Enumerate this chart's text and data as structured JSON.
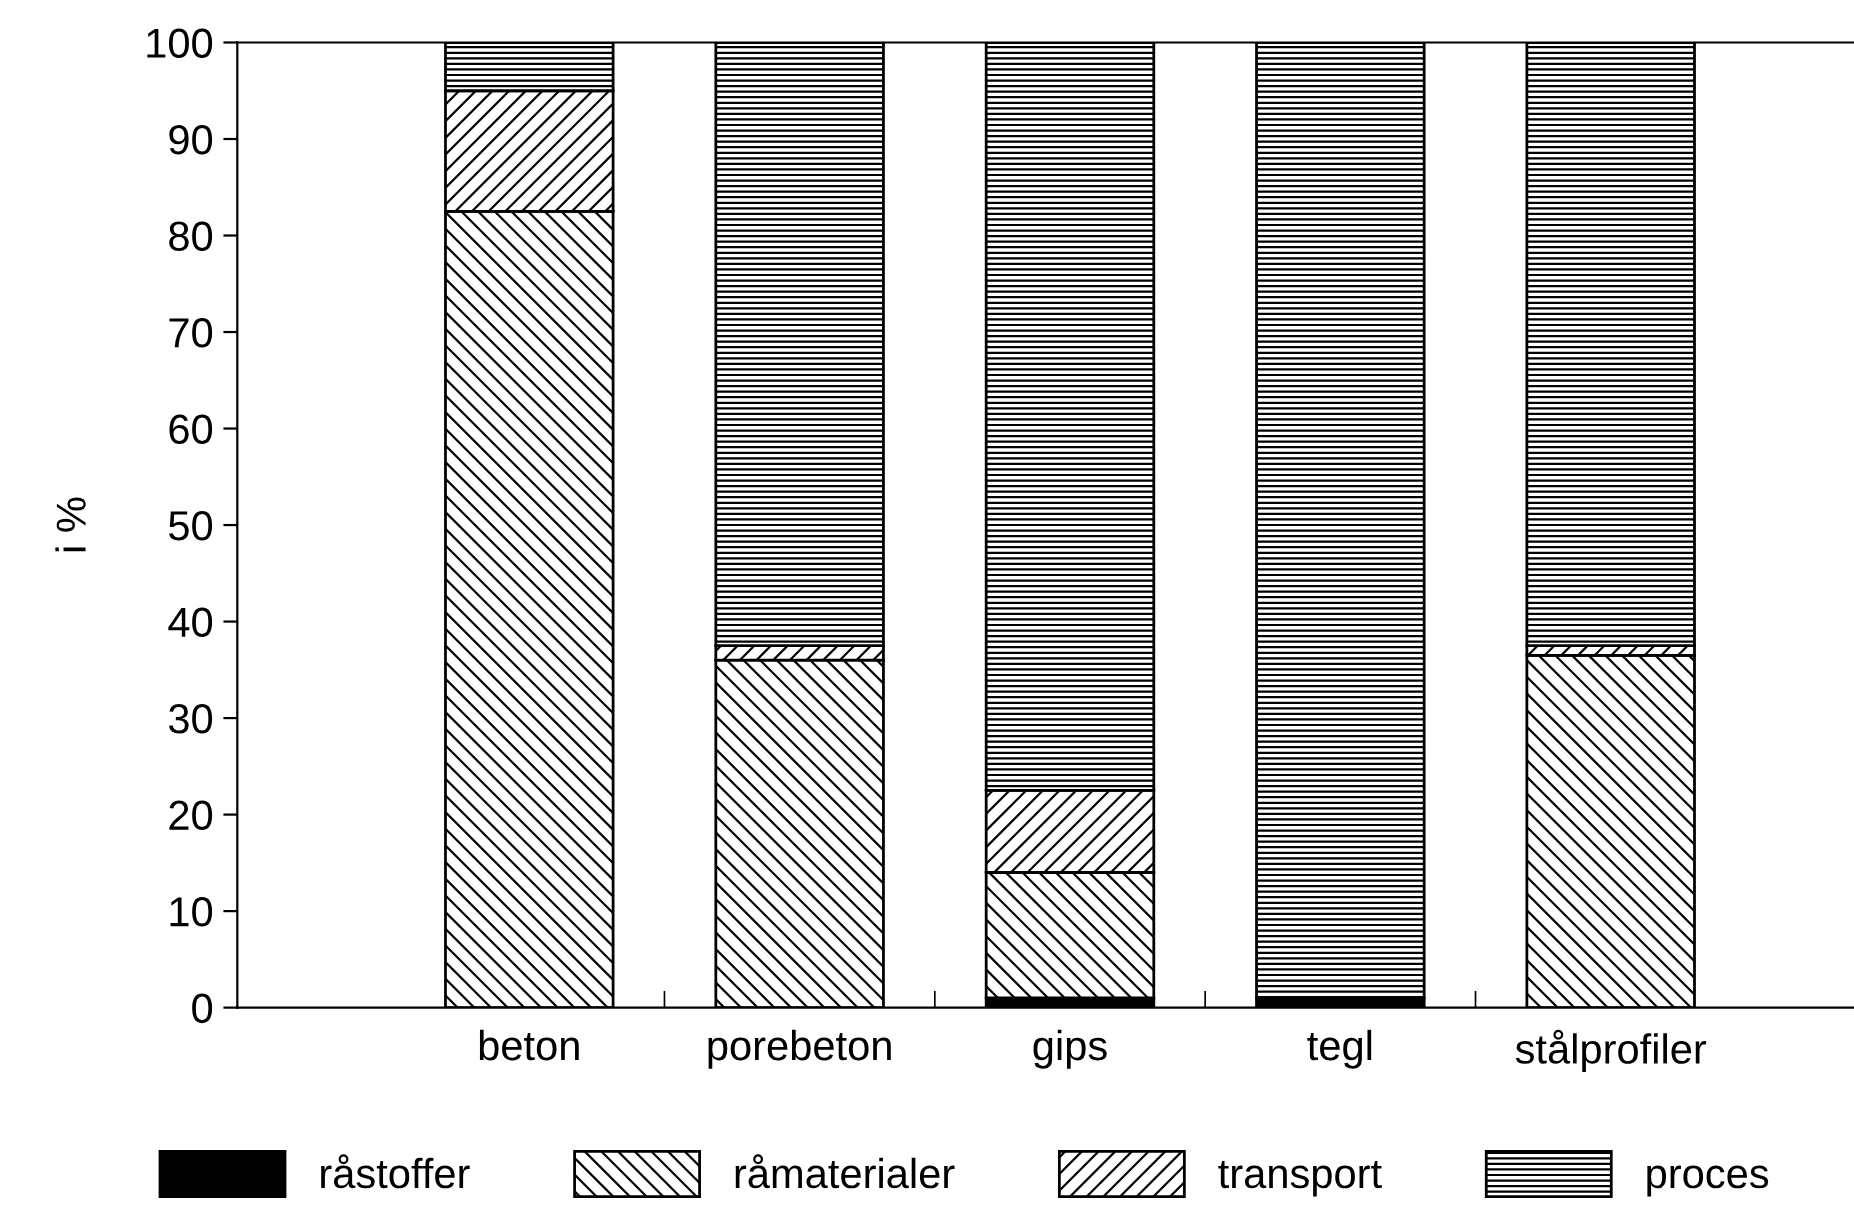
{
  "chart_data": {
    "type": "bar",
    "stacked": true,
    "ylabel": "i %",
    "categories": [
      "beton",
      "porebeton",
      "gips",
      "tegl",
      "stålprofiler"
    ],
    "series": [
      {
        "name": "råstoffer",
        "color": "#000000",
        "values": [
          0,
          0,
          1,
          1,
          0
        ]
      },
      {
        "name": "råmaterialer",
        "color": "#000000",
        "values": [
          82.5,
          36,
          13,
          0,
          36.5
        ]
      },
      {
        "name": "transport",
        "color": "#000000",
        "values": [
          12.5,
          1.5,
          8.5,
          0,
          1
        ]
      },
      {
        "name": "proces",
        "color": "#000000",
        "values": [
          5,
          62.5,
          77.5,
          99,
          62.5
        ]
      }
    ],
    "ylim": [
      0,
      100
    ],
    "yticks": [
      0,
      10,
      20,
      30,
      40,
      50,
      60,
      70,
      80,
      90,
      100
    ],
    "grid": false,
    "legend": "bottom"
  }
}
